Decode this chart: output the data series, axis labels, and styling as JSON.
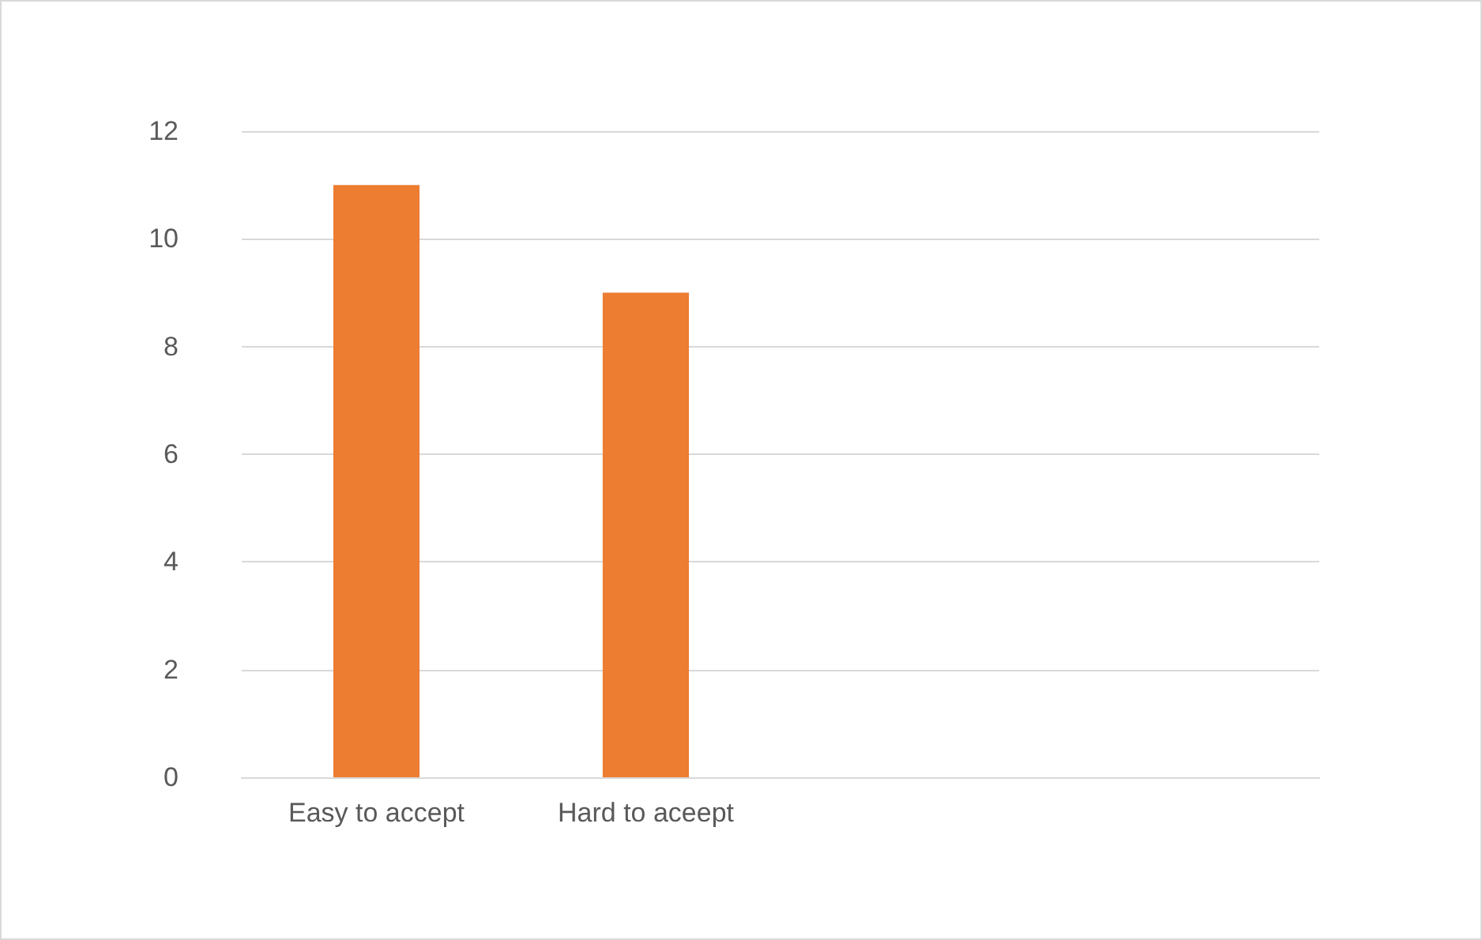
{
  "chart_data": {
    "type": "bar",
    "categories": [
      "Easy to accept",
      "Hard to aceept",
      null,
      null
    ],
    "values": [
      11,
      9,
      null,
      null
    ],
    "color": "#ed7d31",
    "ylim": [
      0,
      12
    ],
    "yticks": [
      0,
      2,
      4,
      6,
      8,
      10,
      12
    ],
    "grid": "y"
  }
}
